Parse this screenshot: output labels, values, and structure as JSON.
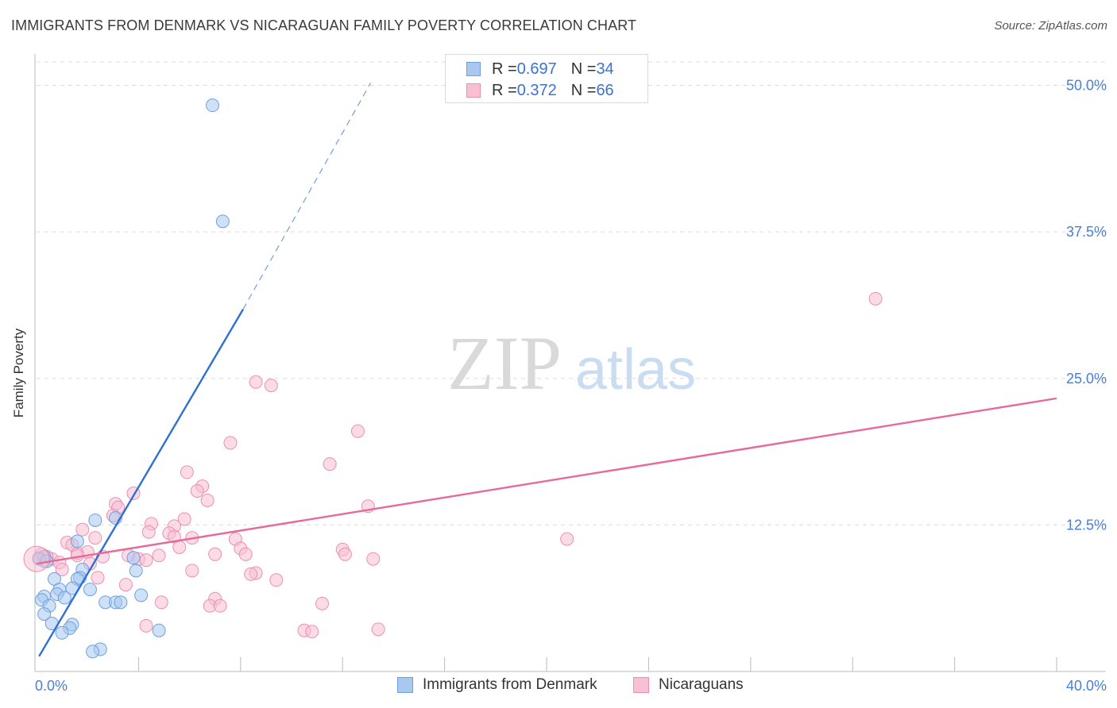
{
  "title": "IMMIGRANTS FROM DENMARK VS NICARAGUAN FAMILY POVERTY CORRELATION CHART",
  "source": "Source: ZipAtlas.com",
  "watermark": {
    "zip": "ZIP",
    "atlas": "atlas"
  },
  "legend_stats": [
    {
      "r_label": "R = ",
      "r_value": "0.697",
      "n_label": "N = ",
      "n_value": "34",
      "color": "#a8c8f0",
      "border": "#6f9fe0"
    },
    {
      "r_label": "R = ",
      "r_value": "0.372",
      "n_label": "N = ",
      "n_value": "66",
      "color": "#f8c0d2",
      "border": "#ee8fae"
    }
  ],
  "bottom_legend": [
    {
      "label": "Immigrants from Denmark",
      "color": "#a8c8f0",
      "border": "#6f9fe0"
    },
    {
      "label": "Nicaraguans",
      "color": "#f8c0d2",
      "border": "#ee8fae"
    }
  ],
  "chart_data": {
    "type": "scatter",
    "title": "IMMIGRANTS FROM DENMARK VS NICARAGUAN FAMILY POVERTY CORRELATION CHART",
    "xlabel": "",
    "ylabel": "Family Poverty",
    "xlim": [
      0,
      40
    ],
    "ylim": [
      0,
      52
    ],
    "x_tick_labels": [
      "0.0%",
      "40.0%"
    ],
    "y_ticks": [
      12.5,
      25.0,
      37.5,
      50.0
    ],
    "y_tick_labels": [
      "12.5%",
      "25.0%",
      "37.5%",
      "50.0%"
    ],
    "grid": true,
    "series": [
      {
        "name": "Immigrants from Denmark",
        "color": "#6f9fe0",
        "fill": "#a8c8f0",
        "points": [
          [
            6.9,
            48.3
          ],
          [
            7.3,
            38.4
          ],
          [
            2.3,
            12.9
          ],
          [
            3.1,
            13.1
          ],
          [
            1.6,
            11.1
          ],
          [
            0.3,
            9.8
          ],
          [
            3.8,
            9.7
          ],
          [
            1.8,
            8.7
          ],
          [
            3.9,
            8.6
          ],
          [
            0.7,
            7.9
          ],
          [
            1.7,
            8.0
          ],
          [
            1.6,
            7.9
          ],
          [
            0.9,
            7.0
          ],
          [
            1.4,
            7.1
          ],
          [
            2.1,
            7.0
          ],
          [
            0.8,
            6.6
          ],
          [
            1.1,
            6.3
          ],
          [
            0.3,
            6.4
          ],
          [
            0.2,
            6.1
          ],
          [
            4.1,
            6.5
          ],
          [
            2.7,
            5.9
          ],
          [
            3.1,
            5.9
          ],
          [
            3.3,
            5.9
          ],
          [
            0.5,
            5.6
          ],
          [
            0.3,
            4.9
          ],
          [
            0.6,
            4.1
          ],
          [
            1.4,
            4.0
          ],
          [
            1.3,
            3.7
          ],
          [
            1.0,
            3.3
          ],
          [
            4.8,
            3.5
          ],
          [
            2.5,
            1.9
          ],
          [
            2.2,
            1.7
          ],
          [
            0.1,
            9.6
          ],
          [
            0.4,
            9.4
          ]
        ],
        "trend": {
          "x": [
            0.1,
            8.1
          ],
          "y": [
            1.3,
            30.9
          ],
          "dash_x": [
            8.1,
            13.1
          ],
          "dash_y": [
            30.9,
            50.2
          ]
        }
      },
      {
        "name": "Nicaraguans",
        "color": "#ee8fae",
        "fill": "#f8c0d2",
        "points": [
          [
            32.9,
            31.8
          ],
          [
            8.6,
            24.7
          ],
          [
            9.2,
            24.4
          ],
          [
            12.6,
            20.5
          ],
          [
            7.6,
            19.5
          ],
          [
            11.5,
            17.7
          ],
          [
            5.9,
            17.0
          ],
          [
            6.5,
            15.8
          ],
          [
            6.3,
            15.4
          ],
          [
            3.8,
            15.2
          ],
          [
            6.7,
            14.6
          ],
          [
            3.1,
            14.3
          ],
          [
            3.2,
            14.0
          ],
          [
            13.0,
            14.1
          ],
          [
            3.0,
            13.3
          ],
          [
            5.8,
            13.0
          ],
          [
            4.5,
            12.6
          ],
          [
            5.4,
            12.4
          ],
          [
            1.8,
            12.1
          ],
          [
            4.4,
            11.9
          ],
          [
            5.2,
            11.8
          ],
          [
            5.4,
            11.5
          ],
          [
            6.1,
            11.4
          ],
          [
            7.8,
            11.3
          ],
          [
            2.3,
            11.4
          ],
          [
            20.8,
            11.3
          ],
          [
            1.2,
            11.0
          ],
          [
            1.4,
            10.8
          ],
          [
            5.6,
            10.6
          ],
          [
            8.0,
            10.5
          ],
          [
            12.0,
            10.4
          ],
          [
            8.2,
            10.0
          ],
          [
            12.1,
            10.0
          ],
          [
            1.6,
            10.1
          ],
          [
            2.0,
            10.2
          ],
          [
            4.8,
            9.9
          ],
          [
            7.0,
            10.0
          ],
          [
            3.6,
            9.9
          ],
          [
            13.2,
            9.6
          ],
          [
            2.6,
            9.8
          ],
          [
            4.0,
            9.6
          ],
          [
            4.3,
            9.5
          ],
          [
            2.1,
            9.2
          ],
          [
            0.6,
            9.6
          ],
          [
            0.9,
            9.3
          ],
          [
            0.3,
            9.4
          ],
          [
            1.0,
            8.7
          ],
          [
            6.1,
            8.6
          ],
          [
            8.6,
            8.4
          ],
          [
            8.4,
            8.3
          ],
          [
            2.4,
            8.0
          ],
          [
            9.4,
            7.8
          ],
          [
            3.5,
            7.4
          ],
          [
            7.0,
            6.2
          ],
          [
            4.9,
            5.9
          ],
          [
            11.2,
            5.8
          ],
          [
            6.8,
            5.6
          ],
          [
            7.2,
            5.6
          ],
          [
            4.3,
            3.9
          ],
          [
            10.5,
            3.5
          ],
          [
            10.8,
            3.4
          ],
          [
            13.4,
            3.6
          ],
          [
            0.1,
            9.7
          ],
          [
            0.2,
            10.0
          ],
          [
            0.4,
            9.8
          ],
          [
            1.6,
            9.9
          ]
        ],
        "trend": {
          "x": [
            0.0,
            40.0
          ],
          "y": [
            9.2,
            23.3
          ]
        }
      }
    ]
  }
}
